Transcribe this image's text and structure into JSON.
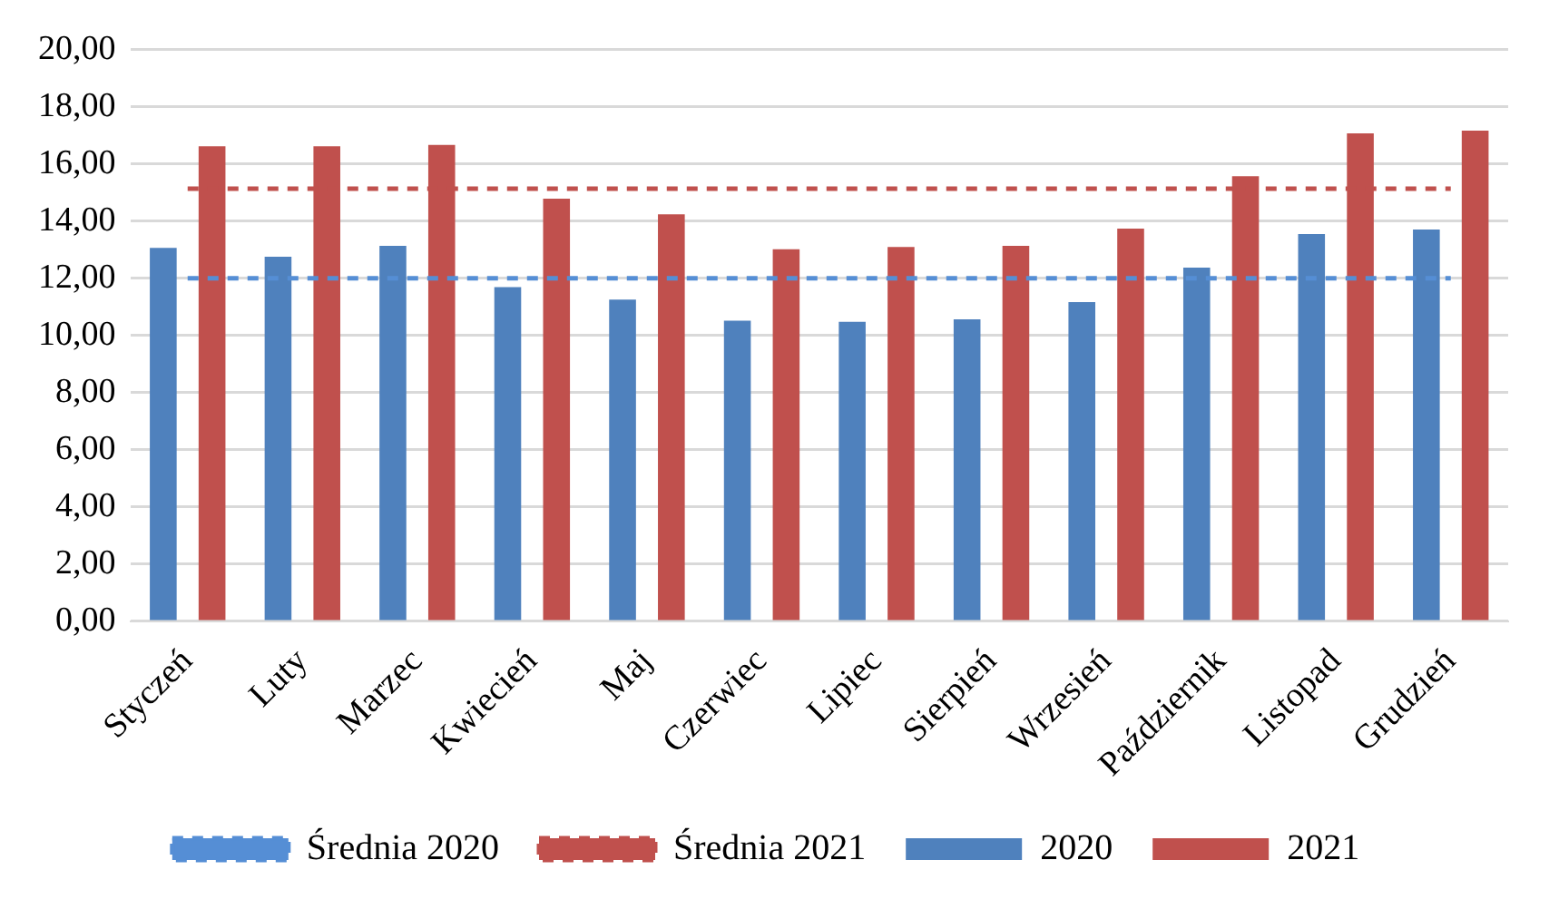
{
  "chart_data": {
    "type": "bar",
    "categories": [
      "Styczeń",
      "Luty",
      "Marzec",
      "Kwiecień",
      "Maj",
      "Czerwiec",
      "Lipiec",
      "Sierpień",
      "Wrzesień",
      "Październik",
      "Listopad",
      "Grudzień"
    ],
    "series": [
      {
        "name": "2020",
        "color": "#4f81bd",
        "values": [
          13.07,
          12.76,
          13.14,
          11.69,
          11.26,
          10.52,
          10.48,
          10.57,
          11.17,
          12.38,
          13.55,
          13.71
        ]
      },
      {
        "name": "2021",
        "color": "#c0504d",
        "values": [
          16.62,
          16.62,
          16.67,
          14.79,
          14.24,
          13.02,
          13.1,
          13.14,
          13.74,
          15.57,
          17.07,
          17.17
        ]
      },
      {
        "name": "Średnia 2020",
        "type": "line",
        "line_style": "dashed",
        "color": "#558ed5",
        "values": [
          12.0,
          12.0,
          12.0,
          12.0,
          12.0,
          12.0,
          12.0,
          12.0,
          12.0,
          12.0,
          12.0,
          12.0
        ]
      },
      {
        "name": "Średnia 2021",
        "type": "line",
        "line_style": "dashed",
        "color": "#c0504d",
        "values": [
          15.14,
          15.14,
          15.14,
          15.14,
          15.14,
          15.14,
          15.14,
          15.14,
          15.14,
          15.14,
          15.14,
          15.14
        ]
      }
    ],
    "ylim": [
      0,
      20
    ],
    "yticks": [
      {
        "value": 0,
        "label": "0,00"
      },
      {
        "value": 2,
        "label": "2,00"
      },
      {
        "value": 4,
        "label": "4,00"
      },
      {
        "value": 6,
        "label": "6,00"
      },
      {
        "value": 8,
        "label": "8,00"
      },
      {
        "value": 10,
        "label": "10,00"
      },
      {
        "value": 12,
        "label": "12,00"
      },
      {
        "value": 14,
        "label": "14,00"
      },
      {
        "value": 16,
        "label": "16,00"
      },
      {
        "value": 18,
        "label": "18,00"
      },
      {
        "value": 20,
        "label": "20,00"
      }
    ],
    "grid": "y",
    "legend": "bottom",
    "marker": "none"
  }
}
